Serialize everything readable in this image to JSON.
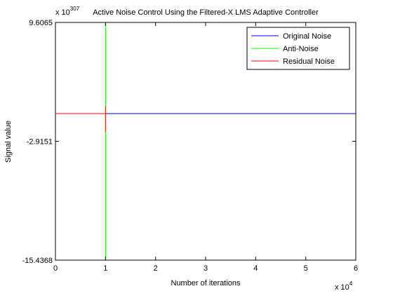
{
  "chart_data": {
    "type": "line",
    "title": "Active Noise Control Using the Filtered-X LMS Adaptive Controller",
    "xlabel": "Number of iterations",
    "ylabel": "Signal value",
    "x_multiplier": "x 10",
    "x_multiplier_exponent": "4",
    "y_multiplier": "x 10",
    "y_multiplier_exponent": "307",
    "xlim": [
      0,
      6
    ],
    "ylim": [
      -15.4368,
      9.6065
    ],
    "x_ticks": [
      0,
      1,
      2,
      3,
      4,
      5,
      6
    ],
    "x_tick_labels": [
      "0",
      "1",
      "2",
      "3",
      "4",
      "5",
      "6"
    ],
    "y_ticks": [
      -15.4368,
      -2.9151,
      9.6065
    ],
    "y_tick_labels": [
      "-15.4368",
      "-2.9151",
      "9.6065"
    ],
    "grid": false,
    "legend_position": "top-right",
    "series": [
      {
        "name": "Original Noise",
        "color": "#0000ff",
        "x": [
          0,
          6
        ],
        "y": [
          0,
          0
        ]
      },
      {
        "name": "Anti-Noise",
        "color": "#00ff00",
        "x": [
          0,
          1.0,
          1.0,
          1.0,
          1.0
        ],
        "y": [
          0,
          0,
          9.6065,
          -15.4368,
          -15.4368
        ]
      },
      {
        "name": "Residual Noise",
        "color": "#ff0000",
        "x": [
          0,
          1.0,
          1.0,
          1.0
        ],
        "y": [
          0,
          0,
          0.8,
          -2.0
        ]
      }
    ]
  }
}
